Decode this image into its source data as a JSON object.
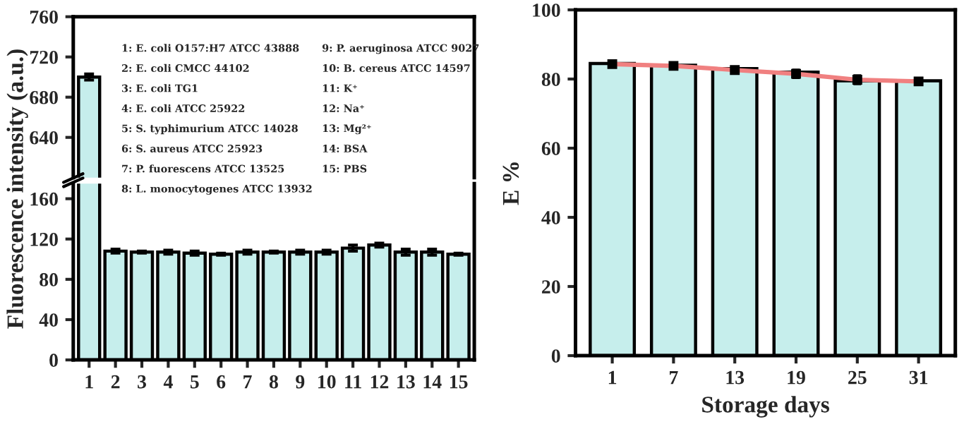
{
  "chart_data": [
    {
      "type": "bar",
      "categories": [
        "1",
        "2",
        "3",
        "4",
        "5",
        "6",
        "7",
        "8",
        "9",
        "10",
        "11",
        "12",
        "13",
        "14",
        "15"
      ],
      "series": [
        {
          "color": "#c6eeec",
          "values": [
            700,
            null,
            null,
            null,
            null,
            null,
            null,
            null,
            null,
            null,
            null,
            null,
            null,
            null,
            null
          ],
          "errors": [
            3,
            null,
            null,
            null,
            null,
            null,
            null,
            null,
            null,
            null,
            null,
            null,
            null,
            null,
            null
          ]
        }
      ],
      "ylim": [
        600,
        760
      ],
      "yticks": [
        640,
        680,
        720,
        760
      ],
      "tick_labels": "y",
      "legend": false,
      "annotations": [
        "1: E. coli O157:H7 ATCC 43888",
        "2: E. coli CMCC 44102",
        "3: E. coli TG1",
        "4: E. coli ATCC 25922",
        "5: S. typhimurium ATCC 14028",
        "6: S. aureus ATCC 25923",
        "7: P. fuorescens ATCC 13525",
        "8: L. monocytogenes ATCC 13932",
        "9: P. aeruginosa ATCC 9027",
        "10: B. cereus ATCC 14597",
        "11: K⁺",
        "12: Na⁺",
        "13: Mg²⁺",
        "14: BSA",
        "15: PBS"
      ]
    },
    {
      "type": "bar",
      "categories": [
        "1",
        "2",
        "3",
        "4",
        "5",
        "6",
        "7",
        "8",
        "9",
        "10",
        "11",
        "12",
        "13",
        "14",
        "15"
      ],
      "series": [
        {
          "color": "#c6eeec",
          "values": [
            null,
            108,
            107,
            107,
            106,
            105,
            107,
            107,
            107,
            107,
            111,
            114,
            107,
            107,
            105
          ],
          "errors": [
            null,
            2,
            1,
            2,
            2,
            1,
            2,
            1,
            2,
            2,
            3,
            2,
            3,
            3,
            1
          ]
        }
      ],
      "ylim": [
        0,
        175
      ],
      "yticks": [
        0,
        40,
        80,
        120,
        160
      ],
      "ylabel": "Fluorescence intensity (a.u.)",
      "legend": false
    },
    {
      "type": "bar",
      "categories": [
        "1",
        "7",
        "13",
        "19",
        "25",
        "31"
      ],
      "xlabel": "Storage days",
      "ylabel": "E %",
      "series": [
        {
          "color": "#c6eeec",
          "values": [
            84.5,
            84,
            83,
            82,
            79.5,
            79.5
          ]
        },
        {
          "type": "line",
          "color": "#f08080",
          "marker": "square",
          "values": [
            84.3,
            83.8,
            82.6,
            81.5,
            79.8,
            79.3
          ],
          "errors": [
            0.5,
            0.5,
            0.8,
            1.2,
            1.3,
            0.5
          ]
        }
      ],
      "ylim": [
        0,
        100
      ],
      "yticks": [
        0,
        20,
        40,
        60,
        80,
        100
      ],
      "legend": false
    }
  ]
}
